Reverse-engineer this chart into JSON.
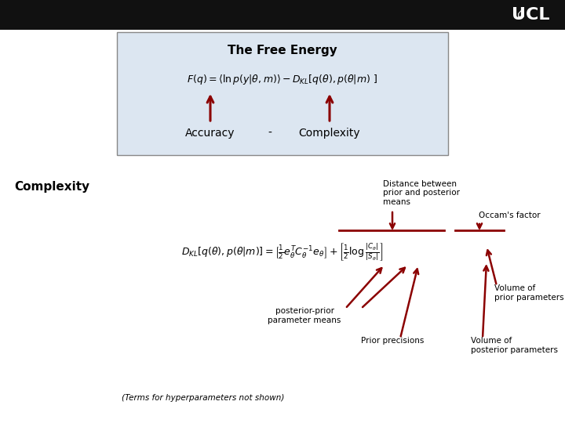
{
  "bg_color": "#ffffff",
  "header_facecolor": "#111111",
  "title_box_facecolor": "#dce6f1",
  "title_box_edgecolor": "#888888",
  "free_energy_title": "The Free Energy",
  "accuracy_label": "Accuracy",
  "dash_label": "-",
  "complexity_label": "Complexity",
  "complexity_section": "Complexity",
  "dist_label": "Distance between\nprior and posterior\nmeans",
  "occam_label": "Occam's factor",
  "posterior_prior_label": "posterior-prior\nparameter means",
  "prior_precisions_label": "Prior precisions",
  "volume_prior_label": "Volume of\nprior parameters",
  "volume_posterior_label": "Volume of\nposterior parameters",
  "terms_note": "(Terms for hyperparameters not shown)",
  "arrow_color": "#8b0000"
}
